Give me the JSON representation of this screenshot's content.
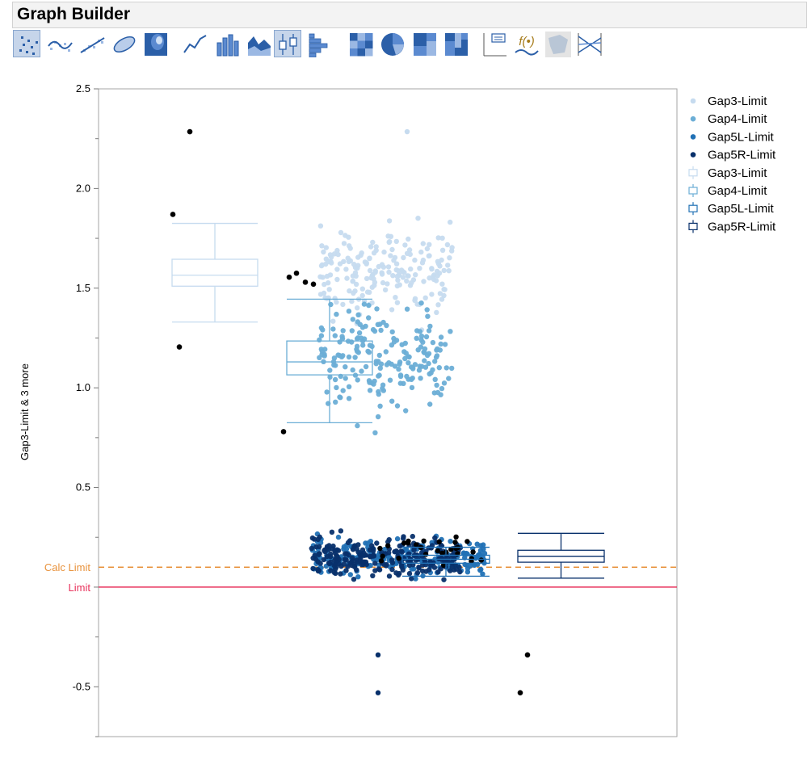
{
  "window": {
    "title": "Graph Builder"
  },
  "toolbar": {
    "buttons": [
      {
        "icon": "points-icon",
        "active": true
      },
      {
        "icon": "smoother-icon",
        "active": false
      },
      {
        "icon": "line-of-fit-icon",
        "active": false
      },
      {
        "icon": "ellipse-icon",
        "active": false
      },
      {
        "icon": "contour-icon",
        "active": false
      },
      {
        "icon": "line-icon",
        "active": false
      },
      {
        "icon": "bar-icon",
        "active": false
      },
      {
        "icon": "area-icon",
        "active": false
      },
      {
        "icon": "box-plot-icon",
        "active": true
      },
      {
        "icon": "histogram-icon",
        "active": false
      },
      {
        "icon": "heatmap-icon",
        "active": false
      },
      {
        "icon": "pie-icon",
        "active": false
      },
      {
        "icon": "treemap-icon",
        "active": false
      },
      {
        "icon": "mosaic-icon",
        "active": false
      },
      {
        "icon": "caption-box-icon",
        "active": false
      },
      {
        "icon": "formula-icon",
        "active": false
      },
      {
        "icon": "map-shapes-icon",
        "active": false
      },
      {
        "icon": "parallel-icon",
        "active": false
      }
    ],
    "formula_glyph": "f(•)"
  },
  "colors": {
    "gap3": "#c6dbef",
    "gap4": "#6baed6",
    "gap5l": "#2171b5",
    "gap5r": "#08306b",
    "outlier": "#000000",
    "calc_limit": "#e8913a",
    "limit": "#e8315b",
    "frame": "#a6a6a6"
  },
  "chart_data": {
    "type": "scatter",
    "ylabel": "Gap3-Limit & 3 more",
    "ylim": [
      -0.75,
      2.5
    ],
    "y_ticks": [
      "2.5",
      "2.0",
      "1.5",
      "1.0",
      "0.5",
      "-0.5"
    ],
    "grid": false,
    "legend_position": "right",
    "legend": [
      {
        "label": "Gap3-Limit",
        "kind": "point",
        "color_key": "gap3"
      },
      {
        "label": "Gap4-Limit",
        "kind": "point",
        "color_key": "gap4"
      },
      {
        "label": "Gap5L-Limit",
        "kind": "point",
        "color_key": "gap5l"
      },
      {
        "label": "Gap5R-Limit",
        "kind": "point",
        "color_key": "gap5r"
      },
      {
        "label": "Gap3-Limit",
        "kind": "box",
        "color_key": "gap3"
      },
      {
        "label": "Gap4-Limit",
        "kind": "box",
        "color_key": "gap4"
      },
      {
        "label": "Gap5L-Limit",
        "kind": "box",
        "color_key": "gap5l"
      },
      {
        "label": "Gap5R-Limit",
        "kind": "box",
        "color_key": "gap5r"
      }
    ],
    "reference_lines": [
      {
        "label": "Calc Limit",
        "y": 0.1,
        "style": "dashed",
        "color_key": "calc_limit"
      },
      {
        "label": "Limit",
        "y": 0.0,
        "style": "solid",
        "color_key": "limit"
      }
    ],
    "box_plots": [
      {
        "series": "Gap3-Limit",
        "min": 1.33,
        "q1": 1.51,
        "median": 1.565,
        "q3": 1.645,
        "max": 1.825,
        "outliers": [
          2.285,
          1.87,
          1.205
        ]
      },
      {
        "series": "Gap4-Limit",
        "min": 0.825,
        "q1": 1.065,
        "median": 1.13,
        "q3": 1.235,
        "max": 1.445,
        "outliers": [
          1.575,
          1.555,
          1.53,
          1.52,
          0.78
        ]
      },
      {
        "series": "Gap5L-Limit",
        "min": 0.055,
        "q1": 0.12,
        "median": 0.14,
        "q3": 0.16,
        "max": 0.2,
        "outliers": []
      },
      {
        "series": "Gap5R-Limit",
        "min": 0.045,
        "q1": 0.125,
        "median": 0.155,
        "q3": 0.185,
        "max": 0.27,
        "outliers": [
          -0.34,
          -0.53
        ]
      }
    ],
    "series": [
      {
        "name": "Gap3-Limit",
        "n": 200,
        "center_y": 1.58,
        "spread": 0.11
      },
      {
        "name": "Gap4-Limit",
        "n": 200,
        "center_y": 1.15,
        "spread": 0.13
      },
      {
        "name": "Gap5L-Limit",
        "n": 220,
        "center_y": 0.145,
        "spread": 0.045
      },
      {
        "name": "Gap5R-Limit",
        "n": 240,
        "center_y": 0.15,
        "spread": 0.045
      }
    ],
    "marked_points": [
      {
        "series": "Gap5R-Limit",
        "y": -0.34
      },
      {
        "series": "Gap5R-Limit",
        "y": -0.53
      },
      {
        "series": "Gap3-Limit",
        "y": 2.285
      }
    ]
  }
}
